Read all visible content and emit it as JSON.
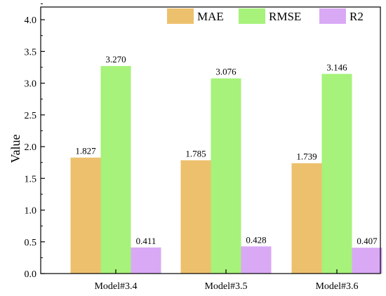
{
  "chart_data": {
    "type": "bar",
    "categories": [
      "Model#3.4",
      "Model#3.5",
      "Model#3.6"
    ],
    "series": [
      {
        "name": "MAE",
        "values": [
          1.827,
          1.785,
          1.739
        ],
        "labels": [
          "1.827",
          "1.785",
          "1.739"
        ],
        "color": "#EDC06D"
      },
      {
        "name": "RMSE",
        "values": [
          3.27,
          3.076,
          3.146
        ],
        "labels": [
          "3.270",
          "3.076",
          "3.146"
        ],
        "color": "#A6F27A"
      },
      {
        "name": "R2",
        "values": [
          0.411,
          0.428,
          0.407
        ],
        "labels": [
          "0.411",
          "0.428",
          "0.407"
        ],
        "color": "#D9A9F5"
      }
    ],
    "ylabel": "Value",
    "xlabel": "",
    "ylim": [
      0,
      4.2
    ],
    "yticks": [
      "0.0",
      "0.5",
      "1.0",
      "1.5",
      "2.0",
      "2.5",
      "3.0",
      "3.5",
      "4.0"
    ],
    "legend_position": "top-right",
    "grid": false
  }
}
